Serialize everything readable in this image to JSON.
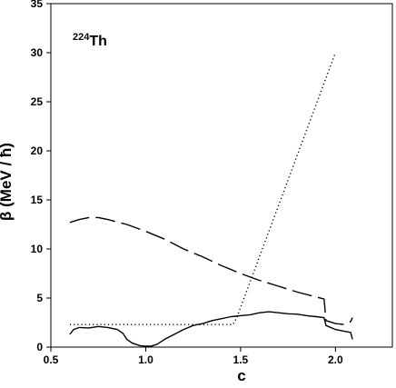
{
  "chart_data": {
    "type": "line",
    "title": "",
    "xlabel": "c",
    "ylabel": "β (MeV / ħ)",
    "annotation": {
      "mass_number": "224",
      "element": "Th"
    },
    "xlim": [
      0.5,
      2.3
    ],
    "ylim": [
      0,
      35
    ],
    "xticks": [
      0.5,
      1.0,
      1.5,
      2.0
    ],
    "xtick_labels": [
      "0.5",
      "1.0",
      "1.5",
      "2.0"
    ],
    "yticks": [
      0,
      5,
      10,
      15,
      20,
      25,
      30,
      35
    ],
    "ytick_labels": [
      "0",
      "5",
      "10",
      "15",
      "20",
      "25",
      "30",
      "35"
    ],
    "grid": false,
    "series": [
      {
        "style": "solid",
        "points": [
          [
            0.6,
            1.3
          ],
          [
            0.62,
            1.8
          ],
          [
            0.65,
            2.0
          ],
          [
            0.7,
            1.95
          ],
          [
            0.75,
            2.1
          ],
          [
            0.8,
            2.0
          ],
          [
            0.85,
            1.8
          ],
          [
            0.88,
            1.4
          ],
          [
            0.9,
            0.8
          ],
          [
            0.93,
            0.4
          ],
          [
            0.97,
            0.15
          ],
          [
            1.0,
            0.1
          ],
          [
            1.03,
            0.1
          ],
          [
            1.06,
            0.3
          ],
          [
            1.1,
            0.8
          ],
          [
            1.15,
            1.3
          ],
          [
            1.2,
            1.8
          ],
          [
            1.25,
            2.2
          ],
          [
            1.3,
            2.4
          ],
          [
            1.35,
            2.7
          ],
          [
            1.4,
            2.9
          ],
          [
            1.45,
            3.1
          ],
          [
            1.5,
            3.2
          ],
          [
            1.55,
            3.3
          ],
          [
            1.6,
            3.5
          ],
          [
            1.65,
            3.6
          ],
          [
            1.7,
            3.5
          ],
          [
            1.75,
            3.4
          ],
          [
            1.8,
            3.35
          ],
          [
            1.85,
            3.2
          ],
          [
            1.9,
            3.1
          ],
          [
            1.94,
            3.0
          ],
          [
            1.95,
            2.2
          ],
          [
            2.0,
            1.8
          ],
          [
            2.05,
            1.6
          ],
          [
            2.08,
            1.5
          ],
          [
            2.09,
            0.8
          ]
        ]
      },
      {
        "style": "dashed",
        "points": [
          [
            0.6,
            12.7
          ],
          [
            0.65,
            13.0
          ],
          [
            0.7,
            13.2
          ],
          [
            0.75,
            13.2
          ],
          [
            0.8,
            13.0
          ],
          [
            0.9,
            12.5
          ],
          [
            1.0,
            11.8
          ],
          [
            1.1,
            11.0
          ],
          [
            1.2,
            10.0
          ],
          [
            1.3,
            9.2
          ],
          [
            1.4,
            8.3
          ],
          [
            1.5,
            7.5
          ],
          [
            1.6,
            6.8
          ],
          [
            1.7,
            6.2
          ],
          [
            1.8,
            5.6
          ],
          [
            1.9,
            5.1
          ],
          [
            1.94,
            4.9
          ],
          [
            1.95,
            2.7
          ],
          [
            2.0,
            2.4
          ],
          [
            2.05,
            2.3
          ],
          [
            2.08,
            2.6
          ],
          [
            2.09,
            3.0
          ]
        ]
      },
      {
        "style": "dotted",
        "points": [
          [
            0.6,
            2.3
          ],
          [
            1.46,
            2.3
          ],
          [
            1.48,
            3.0
          ],
          [
            2.0,
            30.0
          ]
        ]
      }
    ]
  }
}
